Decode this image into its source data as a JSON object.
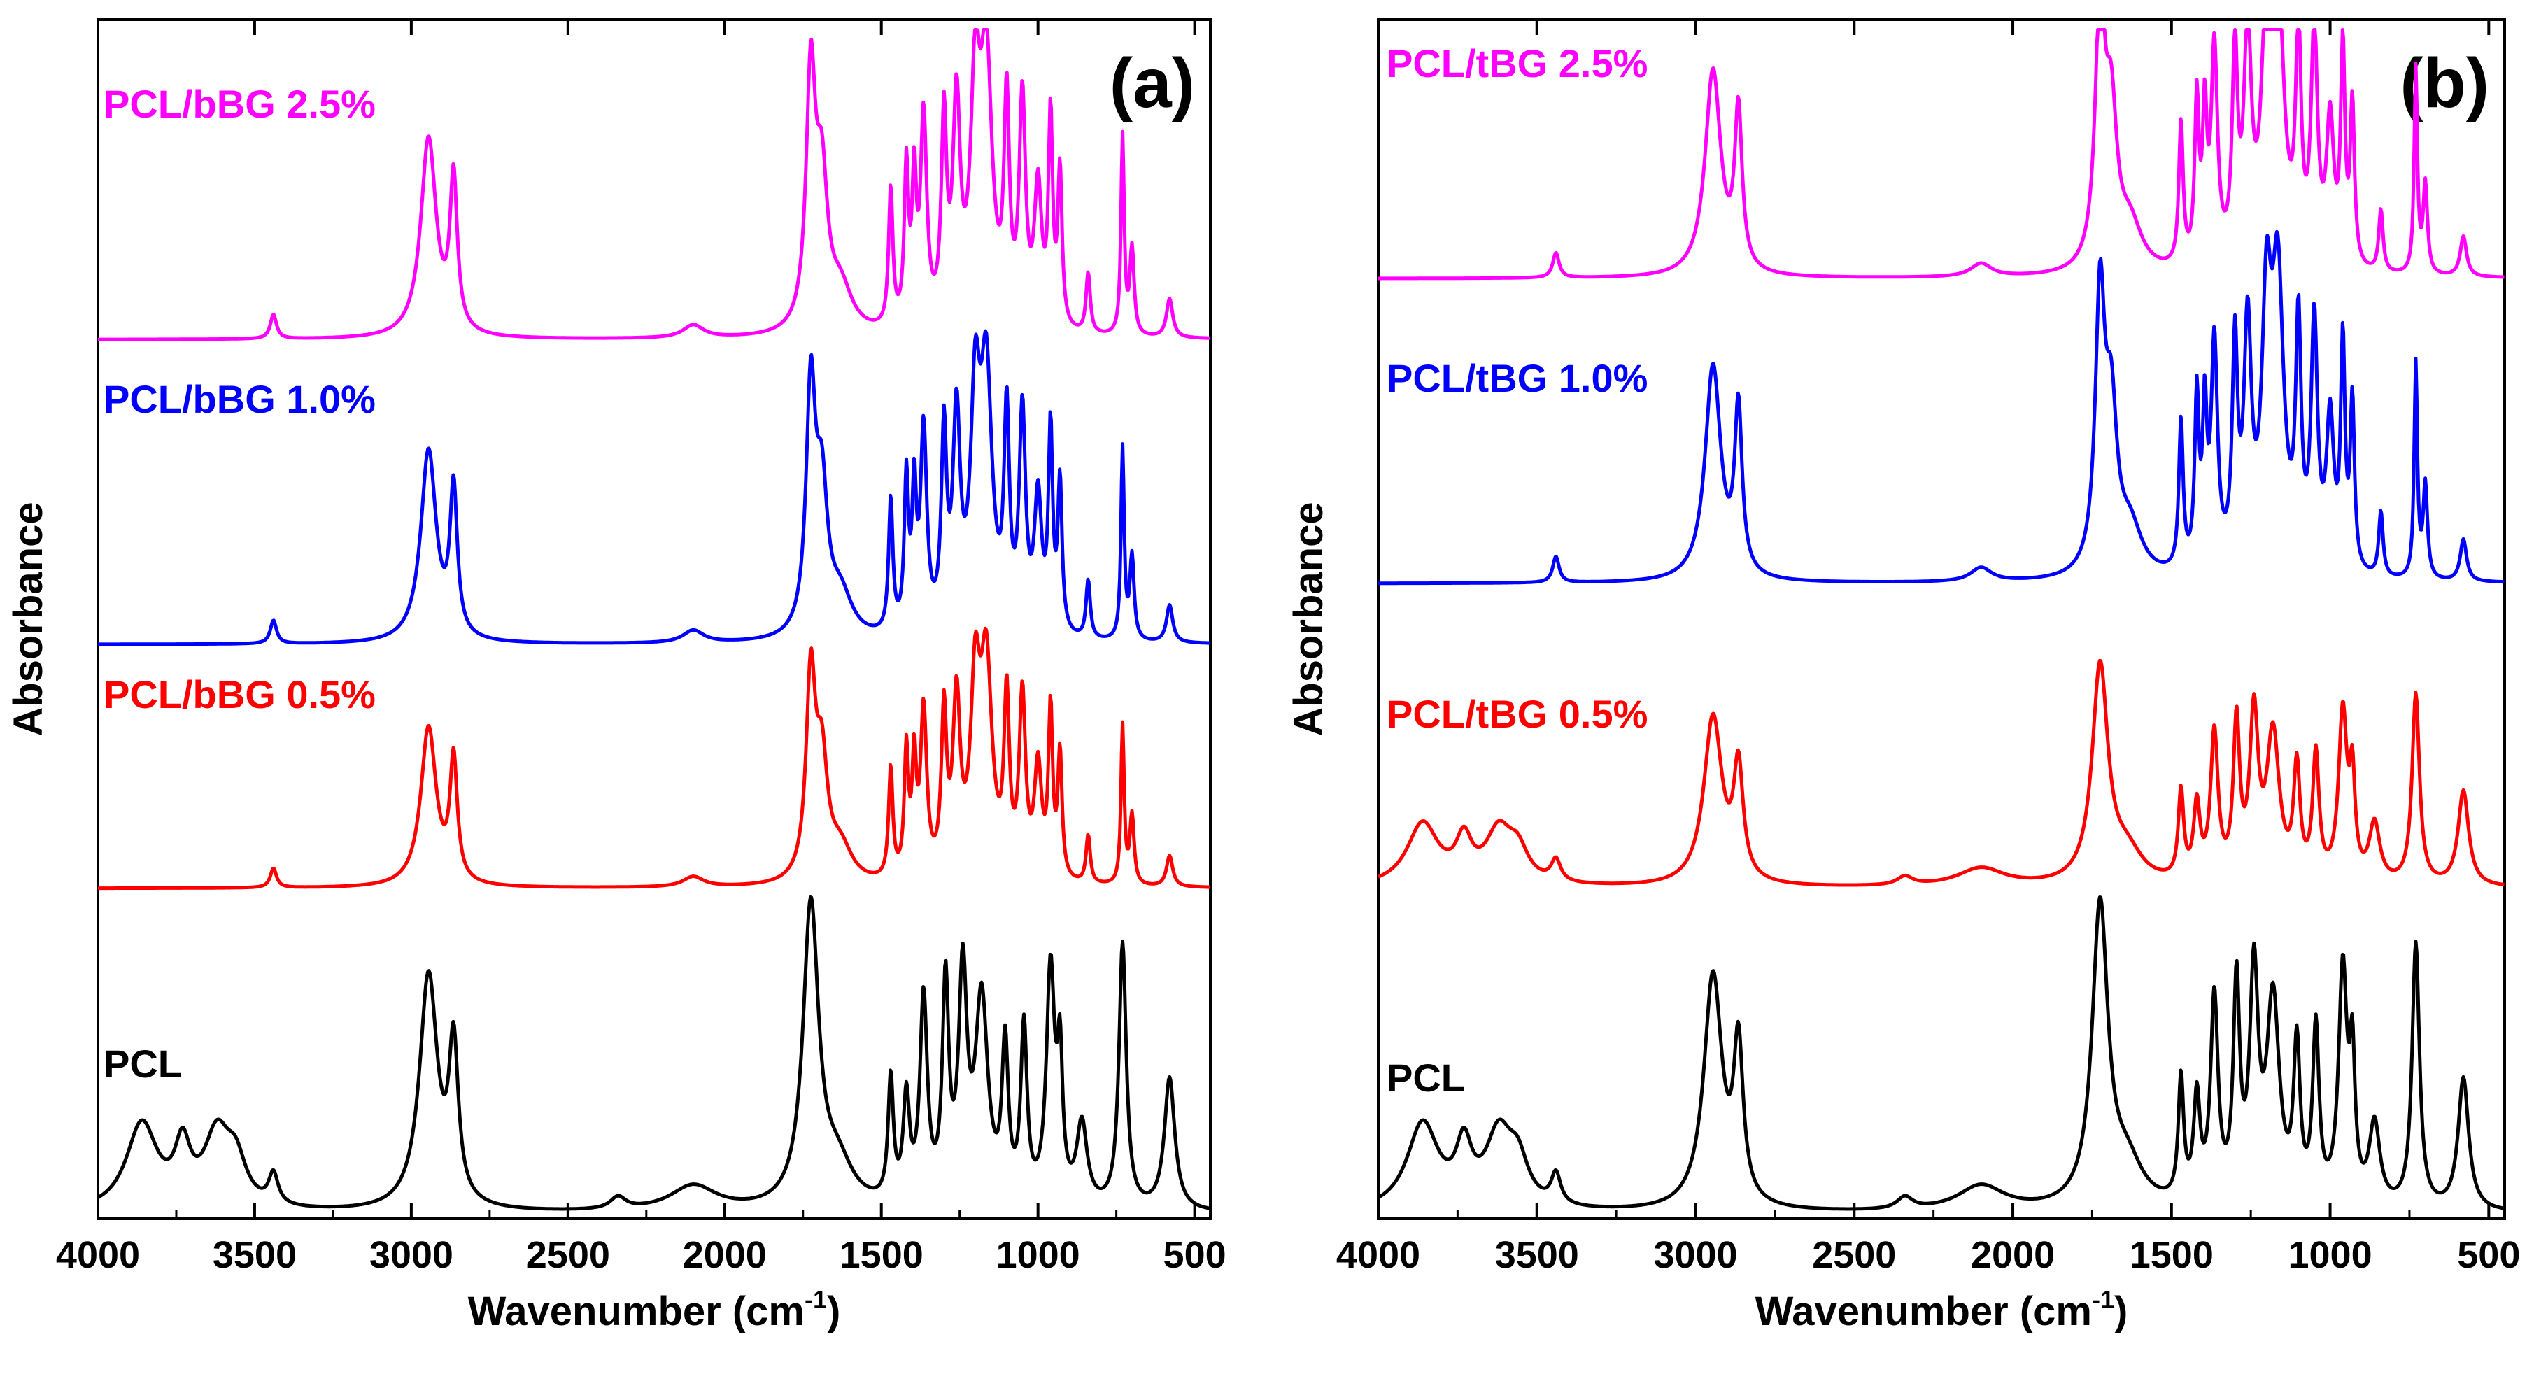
{
  "chart_data": [
    {
      "panel": "a",
      "type": "line",
      "panel_label": "(a)",
      "xlabel": "Wavenumber (cm",
      "xlabel_sup": "-1",
      "xlabel_close": ")",
      "ylabel": "Absorbance",
      "xlim": [
        4000,
        450
      ],
      "ylim": [
        0,
        11.8
      ],
      "x_ticks": [
        4000,
        3500,
        3000,
        2500,
        2000,
        1500,
        1000,
        500
      ],
      "x_tick_labels": [
        "4000",
        "3500",
        "3000",
        "2500",
        "2000",
        "1500",
        "1000",
        "500"
      ],
      "grid": false,
      "series": [
        {
          "name": "PCL",
          "color": "#000000",
          "offset": 0.0,
          "scale": 1.0,
          "profile": "pcl"
        },
        {
          "name": "PCL/bBG 0.5%",
          "color": "#ff0000",
          "offset": 3.2,
          "scale": 0.68,
          "profile": "bg"
        },
        {
          "name": "PCL/bBG 1.0%",
          "color": "#0000ff",
          "offset": 5.6,
          "scale": 0.82,
          "profile": "bg"
        },
        {
          "name": "PCL/bBG 2.5%",
          "color": "#ff00ff",
          "offset": 8.6,
          "scale": 0.85,
          "profile": "bg"
        }
      ]
    },
    {
      "panel": "b",
      "type": "line",
      "panel_label": "(b)",
      "xlabel": "Wavenumber (cm",
      "xlabel_sup": "-1",
      "xlabel_close": ")",
      "ylabel": "Absorbance",
      "xlim": [
        4000,
        450
      ],
      "ylim": [
        0,
        11.8
      ],
      "x_ticks": [
        4000,
        3500,
        3000,
        2500,
        2000,
        1500,
        1000,
        500
      ],
      "x_tick_labels": [
        "4000",
        "3500",
        "3000",
        "2500",
        "2000",
        "1500",
        "1000",
        "500"
      ],
      "grid": false,
      "series": [
        {
          "name": "PCL",
          "color": "#000000",
          "offset": 0.0,
          "scale": 1.0,
          "profile": "pcl"
        },
        {
          "name": "PCL/tBG 0.5%",
          "color": "#ff0000",
          "offset": 3.2,
          "scale": 0.72,
          "profile": "pcl"
        },
        {
          "name": "PCL/tBG 1.0%",
          "color": "#0000ff",
          "offset": 6.2,
          "scale": 0.92,
          "profile": "bg"
        },
        {
          "name": "PCL/tBG 2.5%",
          "color": "#ff00ff",
          "offset": 9.2,
          "scale": 0.88,
          "profile": "bg"
        }
      ]
    }
  ],
  "profiles": {
    "pcl": [
      [
        3860,
        0.85,
        60
      ],
      [
        3730,
        0.55,
        30
      ],
      [
        3620,
        0.7,
        50
      ],
      [
        3560,
        0.4,
        40
      ],
      [
        3440,
        0.3,
        18
      ],
      [
        2945,
        2.3,
        35
      ],
      [
        2865,
        1.5,
        18
      ],
      [
        2340,
        0.12,
        30
      ],
      [
        2100,
        0.25,
        90
      ],
      [
        1725,
        2.95,
        30
      ],
      [
        1640,
        0.4,
        60
      ],
      [
        1470,
        1.2,
        10
      ],
      [
        1420,
        1.0,
        12
      ],
      [
        1365,
        2.0,
        14
      ],
      [
        1295,
        2.1,
        12
      ],
      [
        1240,
        2.2,
        16
      ],
      [
        1180,
        2.0,
        24
      ],
      [
        1105,
        1.5,
        12
      ],
      [
        1045,
        1.7,
        12
      ],
      [
        960,
        2.3,
        16
      ],
      [
        930,
        1.3,
        10
      ],
      [
        860,
        0.8,
        20
      ],
      [
        730,
        2.6,
        14
      ],
      [
        580,
        1.3,
        20
      ]
    ],
    "bg": [
      [
        3440,
        0.28,
        12
      ],
      [
        2945,
        2.3,
        30
      ],
      [
        2865,
        1.75,
        14
      ],
      [
        2100,
        0.15,
        40
      ],
      [
        1725,
        2.9,
        18
      ],
      [
        1690,
        1.6,
        22
      ],
      [
        1630,
        0.5,
        45
      ],
      [
        1470,
        1.6,
        8
      ],
      [
        1420,
        1.8,
        8
      ],
      [
        1395,
        1.6,
        8
      ],
      [
        1365,
        2.4,
        12
      ],
      [
        1300,
        2.3,
        10
      ],
      [
        1260,
        2.5,
        14
      ],
      [
        1200,
        2.6,
        18
      ],
      [
        1165,
        3.0,
        22
      ],
      [
        1100,
        2.5,
        10
      ],
      [
        1050,
        2.6,
        12
      ],
      [
        1000,
        1.6,
        14
      ],
      [
        960,
        2.4,
        8
      ],
      [
        930,
        1.8,
        8
      ],
      [
        840,
        0.7,
        8
      ],
      [
        730,
        2.3,
        6
      ],
      [
        700,
        1.0,
        8
      ],
      [
        580,
        0.45,
        12
      ]
    ]
  }
}
